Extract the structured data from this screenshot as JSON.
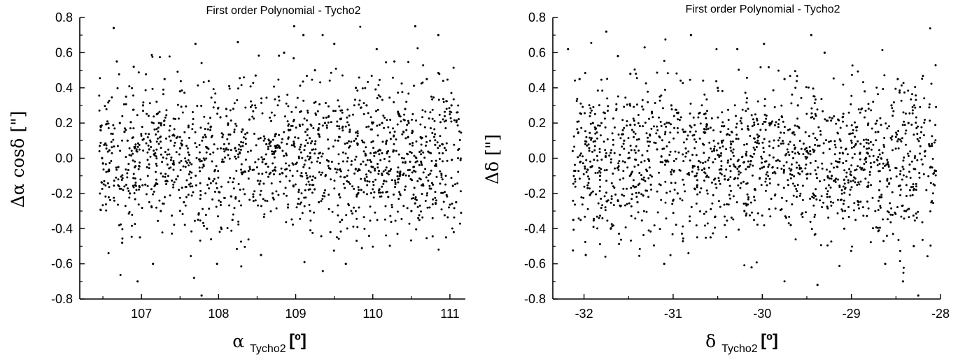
{
  "chart_data": [
    {
      "type": "scatter",
      "title": "First order Polynomial - Tycho2",
      "xlabel": "α",
      "xlabel_sub": "Tycho2",
      "xlabel_unit": "[º]",
      "ylabel": "Δα cosδ [\"]",
      "xlim": [
        106.2,
        111.2
      ],
      "ylim": [
        -0.8,
        0.8
      ],
      "x_ticks": [
        107,
        108,
        109,
        110,
        111
      ],
      "x_tick_labels": [
        "107",
        "108",
        "109",
        "110",
        "111"
      ],
      "y_ticks": [
        -0.8,
        -0.6,
        -0.4,
        -0.2,
        0.0,
        0.2,
        0.4,
        0.6,
        0.8
      ],
      "y_tick_labels": [
        "-0.8",
        "-0.6",
        "-0.4",
        "-0.2",
        "0.0",
        "0.2",
        "0.4",
        "0.6",
        "0.8"
      ],
      "grid": false,
      "marker_color": "#000000",
      "series": [
        {
          "x": [
            106.64,
            106.68,
            106.7,
            106.72,
            106.75,
            106.78,
            106.8,
            106.82,
            106.85,
            106.9,
            106.95,
            106.98,
            107.02,
            107.05,
            107.1,
            107.15,
            107.2,
            107.25,
            107.3,
            107.38,
            107.45,
            107.5,
            107.55,
            107.62,
            107.7,
            107.78,
            107.85,
            107.9,
            107.98,
            108.05,
            108.1,
            108.18,
            108.25,
            108.32,
            108.4,
            108.48,
            108.55,
            108.62,
            108.7,
            108.78,
            108.85,
            108.9,
            108.98,
            109.05,
            109.1,
            109.18,
            109.25,
            109.3,
            109.38,
            109.45,
            109.5,
            109.55,
            109.6,
            109.65,
            109.7,
            109.78,
            109.85,
            109.92,
            110.0,
            110.05,
            110.12,
            110.2,
            110.28,
            110.35,
            110.42,
            110.5,
            110.55,
            110.62,
            110.7,
            110.78,
            110.85,
            110.9,
            110.95,
            111.02,
            111.08
          ],
          "y": [
            0.74,
            0.55,
            -0.05,
            0.2,
            -0.48,
            0.15,
            0.35,
            0.1,
            -0.2,
            0.52,
            -0.7,
            -0.45,
            0.3,
            -0.15,
            0.05,
            -0.6,
            0.25,
            -0.3,
            0.45,
            0.1,
            -0.12,
            0.38,
            -0.25,
            0.02,
            0.65,
            -0.78,
            -0.4,
            0.18,
            -0.6,
            0.12,
            0.28,
            -0.35,
            0.66,
            -0.08,
            0.22,
            0.47,
            -0.55,
            0.08,
            -0.2,
            0.35,
            0.6,
            -0.28,
            0.75,
            0.05,
            0.7,
            -0.15,
            0.5,
            -0.25,
            0.2,
            -0.42,
            0.65,
            0.1,
            -0.35,
            -0.6,
            0.15,
            0.4,
            -0.18,
            0.3,
            -0.05,
            0.62,
            0.2,
            -0.22,
            0.55,
            -0.1,
            0.28,
            -0.3,
            0.75,
            0.12,
            0.45,
            -0.15,
            0.7,
            0.08,
            -0.45,
            0.3,
            -0.25
          ]
        }
      ]
    },
    {
      "type": "scatter",
      "title": "First order Polynomial - Tycho2",
      "xlabel": "δ",
      "xlabel_sub": "Tycho2",
      "xlabel_unit": "[º]",
      "ylabel": "Δδ [\"]",
      "xlim": [
        -32.35,
        -28.0
      ],
      "ylim": [
        -0.8,
        0.8
      ],
      "x_ticks": [
        -32,
        -31,
        -30,
        -29,
        -28
      ],
      "x_tick_labels": [
        "-32",
        "-31",
        "-30",
        "-29",
        "-28"
      ],
      "y_ticks": [
        -0.8,
        -0.6,
        -0.4,
        -0.2,
        0.0,
        0.2,
        0.4,
        0.6,
        0.8
      ],
      "y_tick_labels": [
        "-0.8",
        "-0.6",
        "-0.4",
        "-0.2",
        "0.0",
        "0.2",
        "0.4",
        "0.6",
        "0.8"
      ],
      "grid": false,
      "marker_color": "#000000",
      "series": [
        {
          "x": [
            -32.18,
            -32.12,
            -32.05,
            -31.98,
            -31.9,
            -31.82,
            -31.75,
            -31.7,
            -31.62,
            -31.55,
            -31.48,
            -31.4,
            -31.32,
            -31.25,
            -31.18,
            -31.1,
            -31.02,
            -30.95,
            -30.88,
            -30.8,
            -30.72,
            -30.65,
            -30.58,
            -30.5,
            -30.42,
            -30.35,
            -30.28,
            -30.2,
            -30.12,
            -30.05,
            -29.98,
            -29.9,
            -29.82,
            -29.75,
            -29.68,
            -29.6,
            -29.52,
            -29.45,
            -29.38,
            -29.3,
            -29.22,
            -29.15,
            -29.08,
            -29.0,
            -28.92,
            -28.85,
            -28.78,
            -28.7,
            -28.62,
            -28.55,
            -28.48,
            -28.42,
            -28.36,
            -28.3,
            -28.25
          ],
          "y": [
            0.62,
            -0.35,
            0.45,
            -0.55,
            0.2,
            -0.1,
            0.72,
            -0.4,
            0.58,
            0.1,
            0.48,
            -0.25,
            0.63,
            -0.15,
            0.05,
            -0.6,
            0.3,
            -0.2,
            0.15,
            0.7,
            -0.05,
            0.25,
            -0.45,
            0.4,
            -0.12,
            0.08,
            0.62,
            -0.3,
            -0.62,
            0.1,
            0.65,
            0.2,
            -0.15,
            0.45,
            -0.38,
            0.3,
            0.05,
            0.7,
            -0.72,
            0.6,
            -0.1,
            0.22,
            -0.4,
            0.1,
            -0.25,
            0.38,
            -0.05,
            0.15,
            -0.6,
            0.3,
            0.45,
            -0.7,
            0.2,
            -0.5,
            -0.78
          ]
        }
      ]
    }
  ]
}
